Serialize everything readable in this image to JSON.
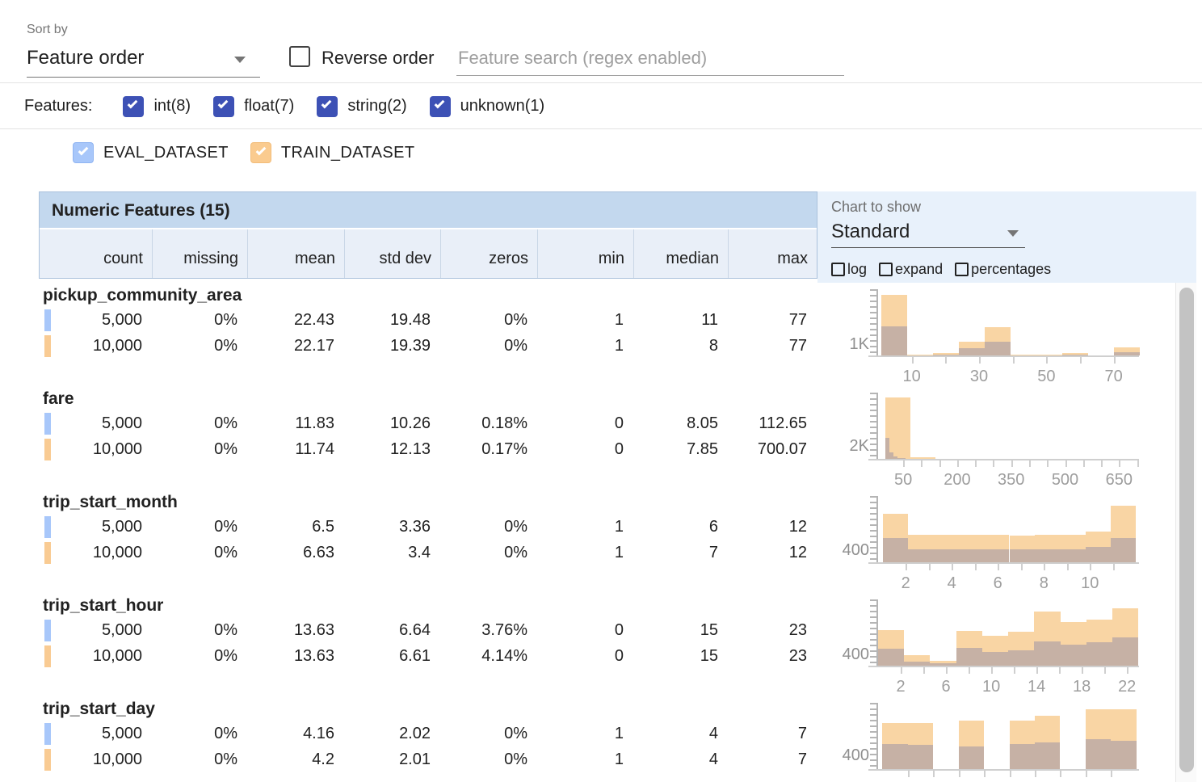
{
  "sort": {
    "label": "Sort by",
    "value": "Feature order",
    "reverse_label": "Reverse order",
    "search_placeholder": "Feature search (regex enabled)"
  },
  "features_bar": {
    "label": "Features:",
    "types": [
      {
        "label": "int(8)",
        "checked": true
      },
      {
        "label": "float(7)",
        "checked": true
      },
      {
        "label": "string(2)",
        "checked": true
      },
      {
        "label": "unknown(1)",
        "checked": true
      }
    ]
  },
  "datasets": [
    {
      "name": "EVAL_DATASET",
      "checked": true,
      "checkbox_color": "#A8C7FA",
      "checkbox_border": "#8FB4F2",
      "swatch": "#A8C7FA"
    },
    {
      "name": "TRAIN_DATASET",
      "checked": true,
      "checkbox_color": "#FACB8F",
      "checkbox_border": "#F2BC79",
      "swatch": "#F9CB93"
    }
  ],
  "table": {
    "title": "Numeric Features (15)",
    "columns": [
      "count",
      "missing",
      "mean",
      "std dev",
      "zeros",
      "min",
      "median",
      "max"
    ],
    "features": [
      {
        "name": "pickup_community_area",
        "rows": [
          {
            "dataset": "EVAL_DATASET",
            "values": [
              "5,000",
              "0%",
              "22.43",
              "19.48",
              "0%",
              "1",
              "11",
              "77"
            ]
          },
          {
            "dataset": "TRAIN_DATASET",
            "values": [
              "10,000",
              "0%",
              "22.17",
              "19.39",
              "0%",
              "1",
              "8",
              "77"
            ]
          }
        ]
      },
      {
        "name": "fare",
        "rows": [
          {
            "dataset": "EVAL_DATASET",
            "values": [
              "5,000",
              "0%",
              "11.83",
              "10.26",
              "0.18%",
              "0",
              "8.05",
              "112.65"
            ]
          },
          {
            "dataset": "TRAIN_DATASET",
            "values": [
              "10,000",
              "0%",
              "11.74",
              "12.13",
              "0.17%",
              "0",
              "7.85",
              "700.07"
            ]
          }
        ]
      },
      {
        "name": "trip_start_month",
        "rows": [
          {
            "dataset": "EVAL_DATASET",
            "values": [
              "5,000",
              "0%",
              "6.5",
              "3.36",
              "0%",
              "1",
              "6",
              "12"
            ]
          },
          {
            "dataset": "TRAIN_DATASET",
            "values": [
              "10,000",
              "0%",
              "6.63",
              "3.4",
              "0%",
              "1",
              "7",
              "12"
            ]
          }
        ]
      },
      {
        "name": "trip_start_hour",
        "rows": [
          {
            "dataset": "EVAL_DATASET",
            "values": [
              "5,000",
              "0%",
              "13.63",
              "6.64",
              "3.76%",
              "0",
              "15",
              "23"
            ]
          },
          {
            "dataset": "TRAIN_DATASET",
            "values": [
              "10,000",
              "0%",
              "13.63",
              "6.61",
              "4.14%",
              "0",
              "15",
              "23"
            ]
          }
        ]
      },
      {
        "name": "trip_start_day",
        "rows": [
          {
            "dataset": "EVAL_DATASET",
            "values": [
              "5,000",
              "0%",
              "4.16",
              "2.02",
              "0%",
              "1",
              "4",
              "7"
            ]
          },
          {
            "dataset": "TRAIN_DATASET",
            "values": [
              "10,000",
              "0%",
              "4.2",
              "2.01",
              "0%",
              "1",
              "4",
              "7"
            ]
          }
        ]
      }
    ]
  },
  "chart_panel": {
    "label": "Chart to show",
    "value": "Standard",
    "options": [
      "log",
      "expand",
      "percentages"
    ]
  },
  "chart_data": [
    {
      "feature": "pickup_community_area",
      "type": "bar",
      "x_range": [
        0,
        78
      ],
      "ymax": 5400,
      "y_tick": {
        "value": 1000,
        "label": "1K"
      },
      "x_ticks": [
        10,
        20,
        30,
        40,
        50,
        60,
        70
      ],
      "x_labels": [
        {
          "v": 10,
          "t": "10"
        },
        {
          "v": 30,
          "t": "30"
        },
        {
          "v": 50,
          "t": "50"
        },
        {
          "v": 70,
          "t": "70"
        }
      ],
      "series": [
        {
          "name": "TRAIN_DATASET",
          "x0": 1,
          "x1": 77.7,
          "counts": [
            4800,
            70,
            190,
            1120,
            2240,
            50,
            40,
            190,
            30,
            640
          ]
        },
        {
          "name": "EVAL_DATASET",
          "x0": 1,
          "x1": 77.7,
          "counts": [
            2300,
            30,
            90,
            570,
            1100,
            20,
            15,
            90,
            10,
            290
          ]
        }
      ]
    },
    {
      "feature": "fare",
      "type": "bar",
      "x_range": [
        -20,
        710
      ],
      "ymax": 9100,
      "y_tick": {
        "value": 2000,
        "label": "2K"
      },
      "x_ticks": [
        50,
        100,
        150,
        200,
        250,
        300,
        350,
        400,
        450,
        500,
        550,
        600,
        650,
        700
      ],
      "x_labels": [
        {
          "v": 50,
          "t": "50"
        },
        {
          "v": 200,
          "t": "200"
        },
        {
          "v": 350,
          "t": "350"
        },
        {
          "v": 500,
          "t": "500"
        },
        {
          "v": 650,
          "t": "650"
        }
      ],
      "series": [
        {
          "name": "TRAIN_DATASET",
          "x0": 0,
          "x1": 700,
          "counts": [
            8250,
            250,
            60,
            40,
            25,
            20,
            15,
            10,
            10,
            20
          ]
        },
        {
          "name": "EVAL_DATASET",
          "x0": 0,
          "x1": 113,
          "counts": [
            2800,
            830,
            330,
            140,
            80,
            50,
            40,
            30,
            20,
            30
          ]
        }
      ]
    },
    {
      "feature": "trip_start_month",
      "type": "bar",
      "x_range": [
        0.8,
        12.2
      ],
      "ymax": 1950,
      "y_tick": {
        "value": 400,
        "label": "400"
      },
      "x_ticks": [
        2,
        3,
        4,
        5,
        6,
        7,
        8,
        9,
        10,
        11
      ],
      "x_labels": [
        {
          "v": 2,
          "t": "2"
        },
        {
          "v": 4,
          "t": "4"
        },
        {
          "v": 6,
          "t": "6"
        },
        {
          "v": 8,
          "t": "8"
        },
        {
          "v": 10,
          "t": "10"
        }
      ],
      "series": [
        {
          "name": "TRAIN_DATASET",
          "x0": 1,
          "x1": 12,
          "counts": [
            1400,
            780,
            790,
            785,
            780,
            775,
            785,
            780,
            880,
            1620
          ]
        },
        {
          "name": "EVAL_DATASET",
          "x0": 1,
          "x1": 12,
          "counts": [
            700,
            370,
            375,
            380,
            375,
            370,
            375,
            370,
            430,
            700
          ]
        }
      ]
    },
    {
      "feature": "trip_start_hour",
      "type": "bar",
      "x_range": [
        0,
        23.2
      ],
      "ymax": 2060,
      "y_tick": {
        "value": 400,
        "label": "400"
      },
      "x_ticks": [
        2,
        4,
        6,
        8,
        10,
        12,
        14,
        16,
        18,
        20,
        22
      ],
      "x_labels": [
        {
          "v": 2,
          "t": "2"
        },
        {
          "v": 6,
          "t": "6"
        },
        {
          "v": 10,
          "t": "10"
        },
        {
          "v": 14,
          "t": "14"
        },
        {
          "v": 18,
          "t": "18"
        },
        {
          "v": 22,
          "t": "22"
        }
      ],
      "series": [
        {
          "name": "TRAIN_DATASET",
          "x0": 0,
          "x1": 23,
          "counts": [
            1090,
            320,
            140,
            1050,
            900,
            1020,
            1640,
            1320,
            1400,
            1750
          ]
        },
        {
          "name": "EVAL_DATASET",
          "x0": 0,
          "x1": 23,
          "counts": [
            520,
            130,
            80,
            530,
            420,
            470,
            745,
            635,
            700,
            855
          ]
        }
      ]
    },
    {
      "feature": "trip_start_day",
      "type": "bar",
      "x_range": [
        0.9,
        7.1
      ],
      "ymax": 1760,
      "y_tick": {
        "value": 400,
        "label": "400"
      },
      "x_ticks": [
        1.6,
        2.2,
        2.8,
        3.4,
        4.0,
        4.6,
        5.2,
        5.8,
        6.4
      ],
      "x_labels": [],
      "series": [
        {
          "name": "TRAIN_DATASET",
          "x0": 1,
          "x1": 7,
          "counts": [
            1200,
            1200,
            0,
            1250,
            0,
            1250,
            1380,
            0,
            1560,
            1550
          ]
        },
        {
          "name": "EVAL_DATASET",
          "x0": 1,
          "x1": 7,
          "counts": [
            640,
            630,
            0,
            580,
            0,
            640,
            700,
            0,
            775,
            740
          ]
        }
      ]
    }
  ],
  "colors": {
    "type_checkbox": "#3D51B5",
    "train_bar": "#F9D5A4",
    "eval_overlap_bar": "#C6B1A5",
    "header_band": "#C3D8EE",
    "header_row": "#E9EFF8",
    "panel": "#E8F1FB"
  }
}
